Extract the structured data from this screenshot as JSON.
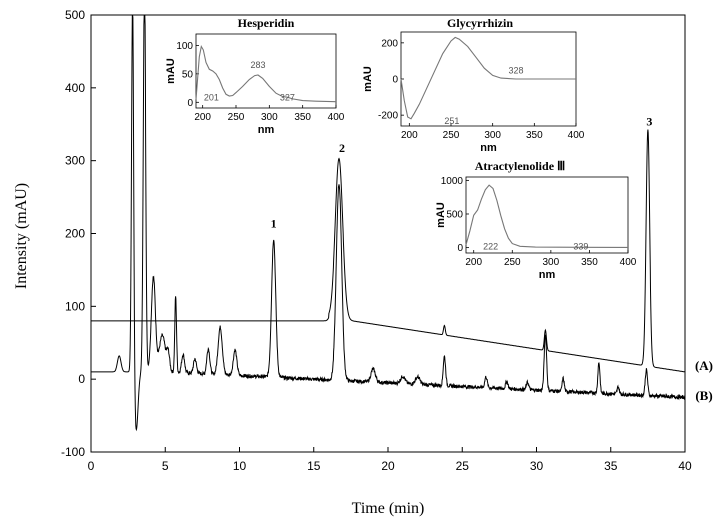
{
  "chart_data": {
    "type": "line",
    "title": "",
    "xlabel": "Time (min)",
    "ylabel": "Intensity (mAU)",
    "xlim": [
      0,
      40
    ],
    "ylim": [
      -100,
      500
    ],
    "xticks": [
      "0",
      "5",
      "10",
      "15",
      "20",
      "25",
      "30",
      "35",
      "40"
    ],
    "yticks": [
      "-100",
      "0",
      "100",
      "200",
      "300",
      "400",
      "500"
    ],
    "series": [
      {
        "name": "(A)",
        "baseline_start": 80,
        "baseline_end": 10,
        "peaks": [
          {
            "t": 16.7,
            "h": 220,
            "w": 0.25
          },
          {
            "t": 23.8,
            "h": 13,
            "w": 0.06
          },
          {
            "t": 30.6,
            "h": 28,
            "w": 0.07
          },
          {
            "t": 37.5,
            "h": 325,
            "w": 0.12
          }
        ]
      },
      {
        "name": "(B)",
        "baseline_start": 10,
        "baseline_end": -25,
        "peaks": [
          {
            "t": 1.9,
            "h": 22,
            "w": 0.12
          },
          {
            "t": 2.8,
            "h": 520,
            "w": 0.07
          },
          {
            "t": 3.05,
            "h": -80,
            "w": 0.12
          },
          {
            "t": 3.6,
            "h": 540,
            "w": 0.08
          },
          {
            "t": 4.2,
            "h": 130,
            "w": 0.14
          },
          {
            "t": 4.8,
            "h": 50,
            "w": 0.2
          },
          {
            "t": 5.2,
            "h": 25,
            "w": 0.1
          },
          {
            "t": 5.7,
            "h": 105,
            "w": 0.06
          },
          {
            "t": 6.2,
            "h": 25,
            "w": 0.1
          },
          {
            "t": 7.0,
            "h": 20,
            "w": 0.1
          },
          {
            "t": 7.9,
            "h": 35,
            "w": 0.1
          },
          {
            "t": 8.7,
            "h": 65,
            "w": 0.14
          },
          {
            "t": 9.7,
            "h": 35,
            "w": 0.12
          },
          {
            "t": 12.3,
            "h": 190,
            "w": 0.14
          },
          {
            "t": 16.7,
            "h": 270,
            "w": 0.18
          },
          {
            "t": 19.0,
            "h": 18,
            "w": 0.15
          },
          {
            "t": 21.0,
            "h": 10,
            "w": 0.15
          },
          {
            "t": 22.0,
            "h": 10,
            "w": 0.15
          },
          {
            "t": 23.8,
            "h": 40,
            "w": 0.08
          },
          {
            "t": 26.6,
            "h": 15,
            "w": 0.08
          },
          {
            "t": 28.0,
            "h": 10,
            "w": 0.08
          },
          {
            "t": 29.4,
            "h": 10,
            "w": 0.08
          },
          {
            "t": 30.6,
            "h": 78,
            "w": 0.08
          },
          {
            "t": 31.8,
            "h": 18,
            "w": 0.07
          },
          {
            "t": 34.2,
            "h": 42,
            "w": 0.07
          },
          {
            "t": 35.5,
            "h": 10,
            "w": 0.07
          },
          {
            "t": 37.4,
            "h": 35,
            "w": 0.08
          }
        ]
      }
    ],
    "peak_labels": [
      {
        "label": "1",
        "t": 12.3,
        "y": 208
      },
      {
        "label": "2",
        "t": 16.9,
        "y": 312
      },
      {
        "label": "3",
        "t": 37.6,
        "y": 348
      }
    ],
    "insets": [
      {
        "name": "Hesperidin",
        "title": "Hesperidin",
        "ylabel": "mAU",
        "xlabel": "nm",
        "xlim": [
          190,
          400
        ],
        "ylim": [
          -10,
          120
        ],
        "xticks": [
          "200",
          "250",
          "300",
          "350",
          "400"
        ],
        "yticks": [
          "0",
          "50",
          "100"
        ],
        "annotations": [
          "201",
          "283",
          "327"
        ],
        "curve": [
          [
            190,
            5
          ],
          [
            195,
            80
          ],
          [
            198,
            98
          ],
          [
            201,
            92
          ],
          [
            205,
            70
          ],
          [
            210,
            58
          ],
          [
            215,
            55
          ],
          [
            220,
            50
          ],
          [
            225,
            40
          ],
          [
            230,
            25
          ],
          [
            235,
            14
          ],
          [
            240,
            11
          ],
          [
            245,
            12
          ],
          [
            250,
            17
          ],
          [
            260,
            28
          ],
          [
            270,
            40
          ],
          [
            278,
            47
          ],
          [
            283,
            48
          ],
          [
            290,
            42
          ],
          [
            300,
            28
          ],
          [
            310,
            16
          ],
          [
            320,
            10
          ],
          [
            327,
            9
          ],
          [
            335,
            6
          ],
          [
            350,
            3
          ],
          [
            370,
            2
          ],
          [
            400,
            1
          ]
        ]
      },
      {
        "name": "Glycyrrhizin",
        "title": "Glycyrrhizin",
        "ylabel": "mAU",
        "xlabel": "nm",
        "xlim": [
          190,
          400
        ],
        "ylim": [
          -260,
          260
        ],
        "xticks": [
          "200",
          "250",
          "300",
          "350",
          "400"
        ],
        "yticks": [
          "-200",
          "0",
          "200"
        ],
        "annotations": [
          "251",
          "328"
        ],
        "curve": [
          [
            190,
            0
          ],
          [
            194,
            -120
          ],
          [
            198,
            -210
          ],
          [
            202,
            -220
          ],
          [
            206,
            -190
          ],
          [
            212,
            -140
          ],
          [
            220,
            -60
          ],
          [
            230,
            40
          ],
          [
            240,
            140
          ],
          [
            250,
            210
          ],
          [
            255,
            230
          ],
          [
            260,
            220
          ],
          [
            270,
            180
          ],
          [
            280,
            120
          ],
          [
            290,
            60
          ],
          [
            300,
            20
          ],
          [
            310,
            5
          ],
          [
            328,
            0
          ],
          [
            350,
            0
          ],
          [
            400,
            0
          ]
        ]
      },
      {
        "name": "Atractylenolide III",
        "title": "Atractylenolide Ⅲ",
        "ylabel": "mAU",
        "xlabel": "nm",
        "xlim": [
          190,
          400
        ],
        "ylim": [
          -80,
          1050
        ],
        "xticks": [
          "200",
          "250",
          "300",
          "350",
          "400"
        ],
        "yticks": [
          "0",
          "500",
          "1000"
        ],
        "annotations": [
          "222",
          "339"
        ],
        "curve": [
          [
            190,
            40
          ],
          [
            195,
            250
          ],
          [
            200,
            480
          ],
          [
            205,
            560
          ],
          [
            210,
            720
          ],
          [
            215,
            860
          ],
          [
            220,
            930
          ],
          [
            225,
            880
          ],
          [
            230,
            700
          ],
          [
            235,
            480
          ],
          [
            240,
            280
          ],
          [
            245,
            140
          ],
          [
            250,
            60
          ],
          [
            260,
            20
          ],
          [
            280,
            8
          ],
          [
            339,
            5
          ],
          [
            400,
            3
          ]
        ]
      }
    ]
  }
}
